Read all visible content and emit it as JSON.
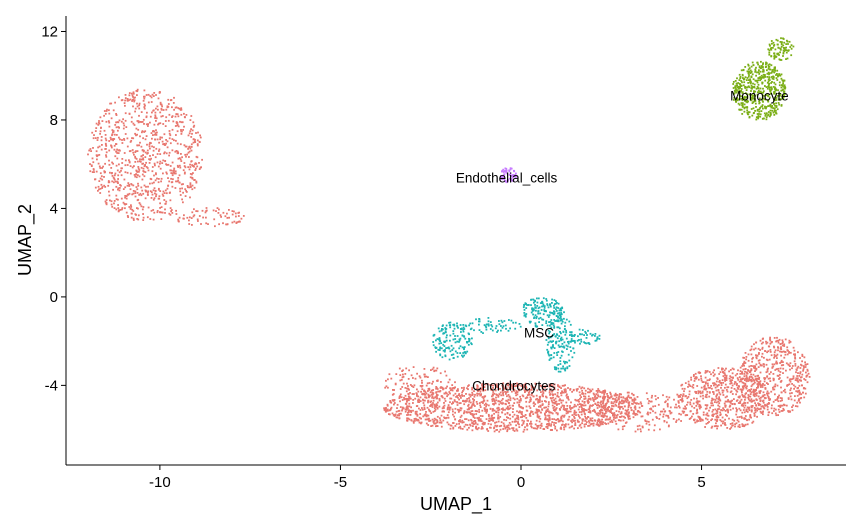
{
  "chart_data": {
    "type": "scatter",
    "xlabel": "UMAP_1",
    "ylabel": "UMAP_2",
    "xlim": [
      -12.6,
      9.0
    ],
    "ylim": [
      -7.6,
      12.7
    ],
    "xticks": [
      -10,
      -5,
      0,
      5
    ],
    "yticks": [
      -4,
      0,
      4,
      8,
      12
    ],
    "xtick_labels": [
      "-10",
      "-5",
      "0",
      "5"
    ],
    "ytick_labels": [
      "-4",
      "0",
      "4",
      "8",
      "12"
    ],
    "legend": "none",
    "grid": false,
    "cluster_labels": [
      {
        "text": "Endothelial_cells",
        "x": -0.4,
        "y": 5.4
      },
      {
        "text": "Monocyte",
        "x": 6.6,
        "y": 9.1
      },
      {
        "text": "MSC",
        "x": 0.5,
        "y": -1.6
      },
      {
        "text": "Chondrocytes",
        "x": -0.2,
        "y": -4.0
      }
    ],
    "series": [
      {
        "name": "Chondrocytes",
        "color": "#E8776F",
        "regions": [
          {
            "cx": -10.4,
            "cy": 6.4,
            "rx": 1.6,
            "ry": 3.0,
            "n": 900
          },
          {
            "cx": -8.6,
            "cy": 3.6,
            "rx": 1.0,
            "ry": 0.45,
            "n": 70
          },
          {
            "cx": -0.2,
            "cy": -5.0,
            "rx": 3.6,
            "ry": 1.1,
            "n": 1600
          },
          {
            "cx": -2.8,
            "cy": -3.9,
            "rx": 1.0,
            "ry": 0.8,
            "n": 120
          },
          {
            "cx": 3.2,
            "cy": -5.2,
            "rx": 1.4,
            "ry": 0.9,
            "n": 200
          },
          {
            "cx": 5.6,
            "cy": -4.6,
            "rx": 1.3,
            "ry": 1.4,
            "n": 600
          },
          {
            "cx": 7.0,
            "cy": -3.6,
            "rx": 1.0,
            "ry": 1.8,
            "n": 500
          }
        ]
      },
      {
        "name": "MSC",
        "color": "#1DB5B4",
        "regions": [
          {
            "cx": -1.9,
            "cy": -2.0,
            "rx": 0.55,
            "ry": 0.85,
            "n": 140
          },
          {
            "cx": -0.9,
            "cy": -1.3,
            "rx": 0.9,
            "ry": 0.35,
            "n": 60
          },
          {
            "cx": 0.6,
            "cy": -0.7,
            "rx": 0.6,
            "ry": 0.7,
            "n": 150
          },
          {
            "cx": 1.1,
            "cy": -2.1,
            "rx": 0.4,
            "ry": 1.3,
            "n": 150
          },
          {
            "cx": 1.8,
            "cy": -1.8,
            "rx": 0.4,
            "ry": 0.4,
            "n": 40
          }
        ]
      },
      {
        "name": "Monocyte",
        "color": "#7BAE16",
        "regions": [
          {
            "cx": 6.6,
            "cy": 9.3,
            "rx": 0.75,
            "ry": 1.35,
            "n": 500
          },
          {
            "cx": 7.2,
            "cy": 11.2,
            "rx": 0.4,
            "ry": 0.5,
            "n": 80
          }
        ]
      },
      {
        "name": "Endothelial_cells",
        "color": "#C77CFF",
        "regions": [
          {
            "cx": -0.35,
            "cy": 5.5,
            "rx": 0.22,
            "ry": 0.35,
            "n": 60
          }
        ]
      }
    ]
  }
}
